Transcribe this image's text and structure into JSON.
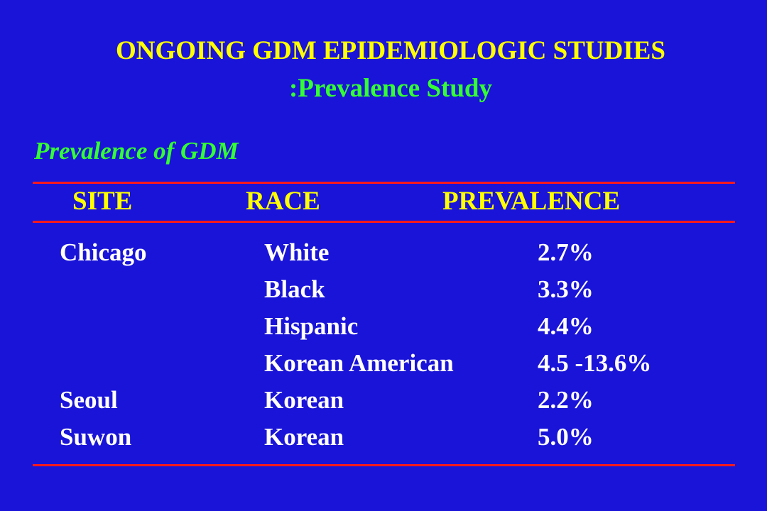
{
  "slide": {
    "title_line1": "ONGOING GDM EPIDEMIOLOGIC STUDIES",
    "title_line2": ":Prevalence Study",
    "subtitle": "Prevalence of GDM",
    "colors": {
      "background": "#1a14d8",
      "title": "#ffff00",
      "subtitle": "#33ff33",
      "rule": "#ff1a1a",
      "body_text": "#ffffff"
    }
  },
  "table": {
    "headers": {
      "site": "SITE",
      "race": "RACE",
      "prevalence": "PREVALENCE"
    },
    "rows": [
      {
        "site": "Chicago",
        "race": "White",
        "prevalence": "2.7%"
      },
      {
        "site": "",
        "race": "Black",
        "prevalence": "3.3%"
      },
      {
        "site": "",
        "race": "Hispanic",
        "prevalence": "4.4%"
      },
      {
        "site": "",
        "race": "Korean American",
        "prevalence": "4.5 -13.6%"
      },
      {
        "site": "Seoul",
        "race": "Korean",
        "prevalence": "2.2%"
      },
      {
        "site": "Suwon",
        "race": "Korean",
        "prevalence": "5.0%"
      }
    ]
  }
}
